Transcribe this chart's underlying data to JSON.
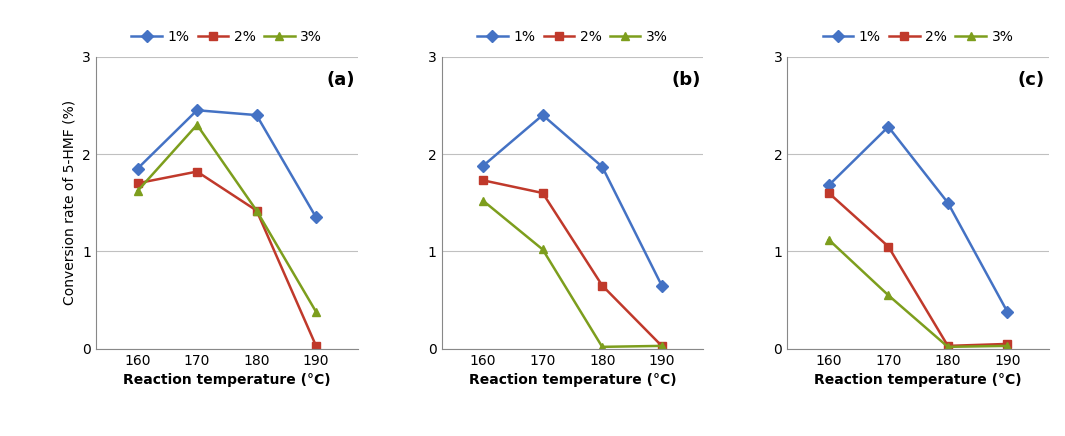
{
  "x": [
    160,
    170,
    180,
    190
  ],
  "panels": [
    {
      "label": "(a)",
      "series": {
        "1%": [
          1.85,
          2.45,
          2.4,
          1.35
        ],
        "2%": [
          1.7,
          1.82,
          1.42,
          0.03
        ],
        "3%": [
          1.62,
          2.3,
          1.42,
          0.38
        ]
      }
    },
    {
      "label": "(b)",
      "series": {
        "1%": [
          1.88,
          2.4,
          1.87,
          0.65
        ],
        "2%": [
          1.73,
          1.6,
          0.65,
          0.03
        ],
        "3%": [
          1.52,
          1.02,
          0.02,
          0.03
        ]
      }
    },
    {
      "label": "(c)",
      "series": {
        "1%": [
          1.68,
          2.28,
          1.5,
          0.38
        ],
        "2%": [
          1.6,
          1.05,
          0.03,
          0.05
        ],
        "3%": [
          1.12,
          0.55,
          0.02,
          0.03
        ]
      }
    }
  ],
  "series_keys": [
    "1%",
    "2%",
    "3%"
  ],
  "colors": {
    "1%": "#4472C4",
    "2%": "#C0392B",
    "3%": "#7D9E1D"
  },
  "markers": {
    "1%": "D",
    "2%": "s",
    "3%": "^"
  },
  "ylabel": "Conversion rate of 5-HMF (%)",
  "xlabel": "Reaction temperature (°C)",
  "ylim": [
    0,
    3
  ],
  "yticks": [
    0,
    1,
    2,
    3
  ],
  "background_color": "#ffffff",
  "grid_color": "#c0c0c0",
  "tick_fontsize": 10,
  "label_fontsize": 10,
  "panel_label_fontsize": 13,
  "legend_fontsize": 10,
  "line_width": 1.8,
  "marker_size": 6
}
